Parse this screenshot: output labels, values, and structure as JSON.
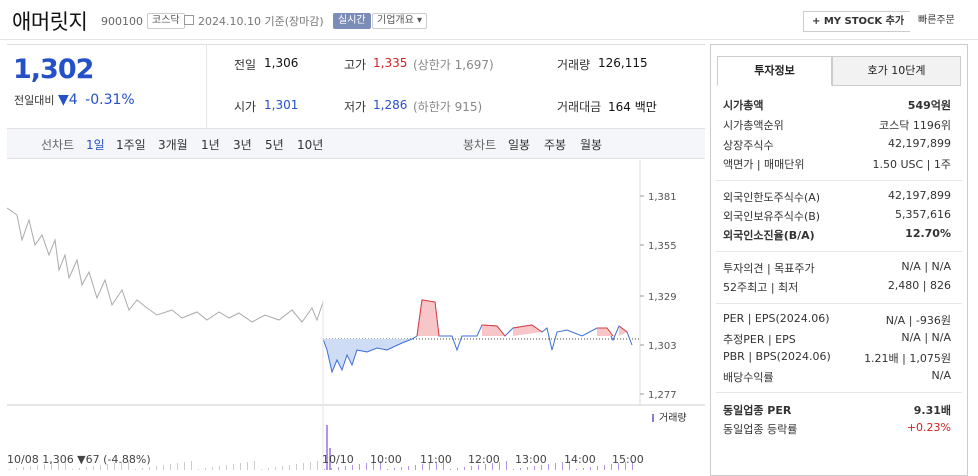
{
  "header": {
    "name": "애머릿지",
    "code": "900100",
    "market": "코스닥",
    "date": "2024.10.10 기준(장마감)",
    "realtime": "실시간",
    "company": "기업개요",
    "company_arrow": "▾",
    "mystock": "+ MY STOCK 추가",
    "quick": "빠른주문"
  },
  "price": {
    "current": "1,302",
    "label": "전일대비",
    "change": "▼4",
    "pct": "-0.31%"
  },
  "quote": [
    {
      "l": "전일",
      "v": "1,306",
      "extra": ""
    },
    {
      "l": "고가",
      "v": "1,335",
      "extra": "(상한가 1,697)"
    },
    {
      "l": "거래량",
      "v": "126,115",
      "extra": ""
    },
    {
      "l": "시가",
      "v": "1,301",
      "extra": ""
    },
    {
      "l": "저가",
      "v": "1,286",
      "extra": "(하한가 915)"
    },
    {
      "l": "거래대금",
      "v": "164 백만",
      "extra": ""
    }
  ],
  "periods": {
    "label": "선차트",
    "items": [
      "1일",
      "1주일",
      "3개월",
      "1년",
      "3년",
      "5년",
      "10년"
    ],
    "label2": "봉차트",
    "items2": [
      "일봉",
      "주봉",
      "월봉"
    ]
  },
  "chart_data": {
    "type": "line",
    "title": "",
    "y_ticks": [
      1381,
      1355,
      1329,
      1303,
      1277
    ],
    "ylim": [
      1277,
      1381
    ],
    "x_ticks": [
      "10/10",
      "10:00",
      "11:00",
      "12:00",
      "13:00",
      "14:00",
      "15:00"
    ],
    "prev_close": 1306,
    "volume_label": "거래량",
    "prev_day_note": "10/08 1,306 ▼67 (-4.88%)"
  },
  "right": {
    "tab1": "투자정보",
    "tab2": "호가 10단계",
    "rows": [
      {
        "l": "시가총액",
        "v": "549억원",
        "b": true
      },
      {
        "l": "시가총액순위",
        "v": "코스닥 1196위"
      },
      {
        "l": "상장주식수",
        "v": "42,197,899"
      },
      {
        "l": "액면가 | 매매단위",
        "v": "1.50 USC | 1주"
      },
      {
        "l": "외국인한도주식수(A)",
        "v": "42,197,899"
      },
      {
        "l": "외국인보유주식수(B)",
        "v": "5,357,616"
      },
      {
        "l": "외국인소진율(B/A)",
        "v": "12.70%",
        "b": true
      },
      {
        "l": "투자의견 | 목표주가",
        "v": "N/A | N/A"
      },
      {
        "l": "52주최고 | 최저",
        "v": "2,480 | 826"
      },
      {
        "l": "PER | EPS(2024.06)",
        "v": "N/A | -936원"
      },
      {
        "l": "추정PER | EPS",
        "v": "N/A | N/A"
      },
      {
        "l": "PBR | BPS(2024.06)",
        "v": "1.21배 | 1,075원"
      },
      {
        "l": "배당수익률",
        "v": "N/A"
      },
      {
        "l": "동일업종 PER",
        "v": "9.31배",
        "b": true
      },
      {
        "l": "동일업종 등락률",
        "v": "+0.23%",
        "red": true
      }
    ]
  }
}
